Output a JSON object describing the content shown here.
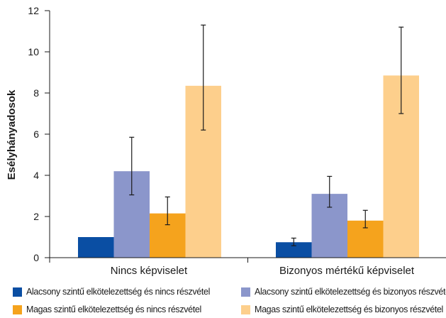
{
  "chart_data": {
    "type": "bar",
    "title": "",
    "xlabel": "",
    "ylabel": "Esélyhányadosok",
    "ylim": [
      0,
      12
    ],
    "yticks": [
      0,
      2,
      4,
      6,
      8,
      10,
      12
    ],
    "grid": false,
    "legend_position": "bottom",
    "categories": [
      "Nincs képviselet",
      "Bizonyos mértékű képviselet"
    ],
    "series": [
      {
        "name": "Alacsony szintű elkötelezettség és nincs részvétel",
        "color": "#0a4ea3",
        "values": [
          1.0,
          0.75
        ],
        "error_low": [
          null,
          0.58
        ],
        "error_high": [
          null,
          0.95
        ]
      },
      {
        "name": "Alacsony szintű elkötelezettség és bizonyos részvéte",
        "color": "#8b96cb",
        "values": [
          4.2,
          3.1
        ],
        "error_low": [
          3.05,
          2.45
        ],
        "error_high": [
          5.85,
          3.95
        ]
      },
      {
        "name": "Magas szintű elkötelezettség és nincs részvétel",
        "color": "#f5a31d",
        "values": [
          2.15,
          1.8
        ],
        "error_low": [
          1.6,
          1.45
        ],
        "error_high": [
          2.95,
          2.3
        ]
      },
      {
        "name": "Magas szintű elkötelezettség és bizonyos részvétel",
        "color": "#fdcf8c",
        "values": [
          8.35,
          8.85
        ],
        "error_low": [
          6.2,
          7.0
        ],
        "error_high": [
          11.3,
          11.2
        ]
      }
    ]
  }
}
